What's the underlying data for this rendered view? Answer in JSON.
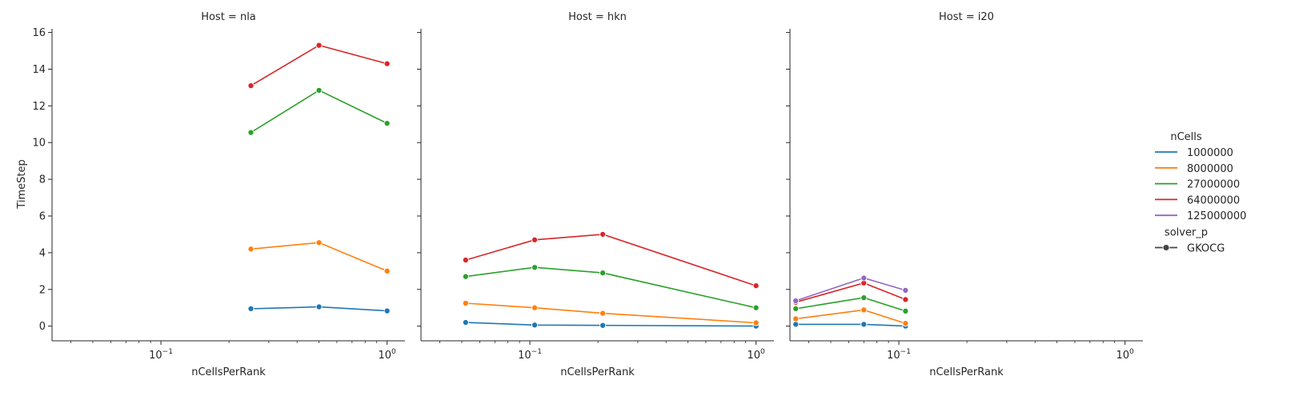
{
  "chart_data": {
    "type": "line",
    "x_scale": "log",
    "y_scale": "linear",
    "xlabel": "nCellsPerRank",
    "ylabel": "TimeStep",
    "xlim": [
      0.033,
      1.2
    ],
    "ylim": [
      -0.8,
      16.2
    ],
    "y_ticks": [
      "0",
      "2",
      "4",
      "6",
      "8",
      "10",
      "12",
      "14",
      "16"
    ],
    "x_tick_labels": [
      {
        "base": "10",
        "exp": "−1"
      },
      {
        "base": "10",
        "exp": "0"
      }
    ],
    "panels": [
      {
        "title": "Host = nla",
        "series": [
          {
            "name": "1000000",
            "color": "#1f77b4",
            "points": [
              [
                0.25,
                0.95
              ],
              [
                0.5,
                1.05
              ],
              [
                1.0,
                0.83
              ]
            ]
          },
          {
            "name": "8000000",
            "color": "#ff7f0e",
            "points": [
              [
                0.25,
                4.2
              ],
              [
                0.5,
                4.55
              ],
              [
                1.0,
                3.0
              ]
            ]
          },
          {
            "name": "27000000",
            "color": "#2ca02c",
            "points": [
              [
                0.25,
                10.55
              ],
              [
                0.5,
                12.85
              ],
              [
                1.0,
                11.05
              ]
            ]
          },
          {
            "name": "64000000",
            "color": "#d62728",
            "points": [
              [
                0.25,
                13.1
              ],
              [
                0.5,
                15.3
              ],
              [
                1.0,
                14.3
              ]
            ]
          }
        ]
      },
      {
        "title": "Host = hkn",
        "series": [
          {
            "name": "1000000",
            "color": "#1f77b4",
            "points": [
              [
                0.052,
                0.2
              ],
              [
                0.105,
                0.06
              ],
              [
                0.21,
                0.04
              ],
              [
                1.0,
                0.0
              ]
            ]
          },
          {
            "name": "8000000",
            "color": "#ff7f0e",
            "points": [
              [
                0.052,
                1.25
              ],
              [
                0.105,
                1.0
              ],
              [
                0.21,
                0.7
              ],
              [
                1.0,
                0.18
              ]
            ]
          },
          {
            "name": "27000000",
            "color": "#2ca02c",
            "points": [
              [
                0.052,
                2.7
              ],
              [
                0.105,
                3.2
              ],
              [
                0.21,
                2.9
              ],
              [
                1.0,
                1.0
              ]
            ]
          },
          {
            "name": "64000000",
            "color": "#d62728",
            "points": [
              [
                0.052,
                3.6
              ],
              [
                0.105,
                4.7
              ],
              [
                0.21,
                5.0
              ],
              [
                1.0,
                2.2
              ]
            ]
          }
        ]
      },
      {
        "title": "Host = i20",
        "series": [
          {
            "name": "1000000",
            "color": "#1f77b4",
            "points": [
              [
                0.035,
                0.1
              ],
              [
                0.07,
                0.1
              ],
              [
                0.107,
                0.0
              ]
            ]
          },
          {
            "name": "8000000",
            "color": "#ff7f0e",
            "points": [
              [
                0.035,
                0.4
              ],
              [
                0.07,
                0.88
              ],
              [
                0.107,
                0.15
              ]
            ]
          },
          {
            "name": "27000000",
            "color": "#2ca02c",
            "points": [
              [
                0.035,
                0.95
              ],
              [
                0.07,
                1.55
              ],
              [
                0.107,
                0.82
              ]
            ]
          },
          {
            "name": "64000000",
            "color": "#d62728",
            "points": [
              [
                0.035,
                1.3
              ],
              [
                0.07,
                2.35
              ],
              [
                0.107,
                1.45
              ]
            ]
          },
          {
            "name": "125000000",
            "color": "#9467bd",
            "points": [
              [
                0.035,
                1.38
              ],
              [
                0.07,
                2.62
              ],
              [
                0.107,
                1.95
              ]
            ]
          }
        ]
      }
    ],
    "legend": {
      "placement": "right",
      "hue_title": "nCells",
      "hue_entries": [
        {
          "label": "1000000",
          "color": "#1f77b4"
        },
        {
          "label": "8000000",
          "color": "#ff7f0e"
        },
        {
          "label": "27000000",
          "color": "#2ca02c"
        },
        {
          "label": "64000000",
          "color": "#d62728"
        },
        {
          "label": "125000000",
          "color": "#9467bd"
        }
      ],
      "style_title": "solver_p",
      "style_entries": [
        {
          "label": "GKOCG",
          "color": "#444444"
        }
      ]
    },
    "grid": false
  }
}
